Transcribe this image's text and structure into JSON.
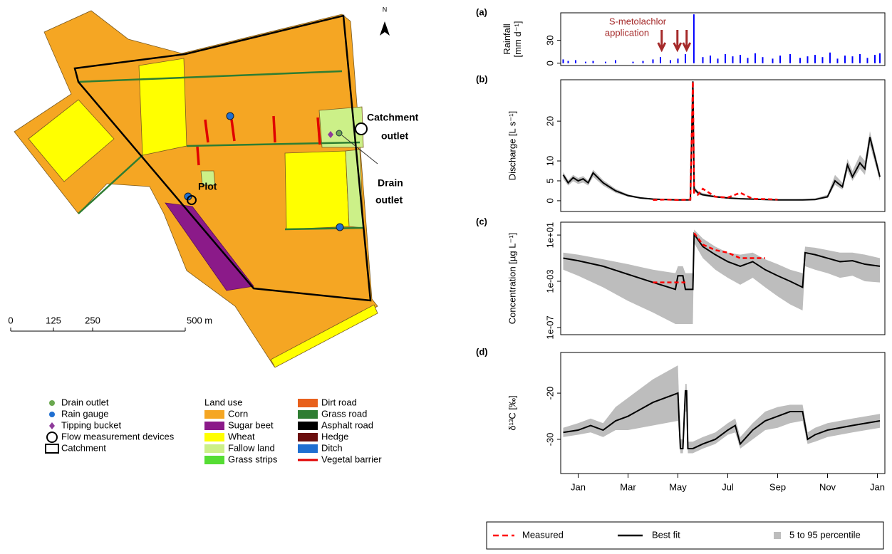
{
  "map": {
    "north": "N",
    "labels": {
      "catchment_outlet": [
        "Catchment",
        "outlet"
      ],
      "drain_outlet": [
        "Drain",
        "outlet"
      ],
      "plot": "Plot"
    },
    "scale": [
      "0",
      "125",
      "250",
      "500 m"
    ],
    "legend": {
      "points": [
        {
          "label": "Drain outlet",
          "color": "#6aa84f",
          "shape": "circle"
        },
        {
          "label": "Rain gauge",
          "color": "#1f6fd1",
          "shape": "circle"
        },
        {
          "label": "Tipping bucket",
          "color": "#8e3a9a",
          "shape": "diamond"
        },
        {
          "label": "Flow measurement devices",
          "color": "#000000",
          "shape": "ring"
        },
        {
          "label": "Catchment",
          "color": "#000000",
          "shape": "box"
        }
      ],
      "land_use_title": "Land use",
      "land_use": [
        {
          "label": "Corn",
          "color": "#f5a623"
        },
        {
          "label": "Sugar beet",
          "color": "#8b1a89"
        },
        {
          "label": "Wheat",
          "color": "#ffff00"
        },
        {
          "label": "Fallow land",
          "color": "#ccf088"
        },
        {
          "label": "Grass strips",
          "color": "#55dd33"
        }
      ],
      "lines": [
        {
          "label": "Dirt road",
          "color": "#e8601c",
          "shape": "box"
        },
        {
          "label": "Grass road",
          "color": "#2e7d32",
          "shape": "box"
        },
        {
          "label": "Asphalt road",
          "color": "#000000",
          "shape": "box"
        },
        {
          "label": "Hedge",
          "color": "#6b0f0f",
          "shape": "box"
        },
        {
          "label": "Ditch",
          "color": "#1f6fd1",
          "shape": "box"
        },
        {
          "label": "Vegetal barrier",
          "color": "#e00000",
          "shape": "line"
        }
      ]
    }
  },
  "chart_data": [
    {
      "type": "bar",
      "panel_label": "(a)",
      "y_label": [
        "Rainfall",
        "[mm d⁻¹]"
      ],
      "color": "#0000ff",
      "xlim": [
        -0.7,
        12.3
      ],
      "ylim": [
        -3,
        66
      ],
      "yticks": [
        0,
        30
      ],
      "x": [
        -0.6,
        -0.4,
        -0.1,
        0.3,
        0.6,
        1.1,
        1.5,
        2.2,
        2.6,
        3.0,
        3.3,
        3.7,
        4.0,
        4.3,
        4.64,
        5.0,
        5.3,
        5.6,
        5.9,
        6.2,
        6.5,
        6.8,
        7.1,
        7.4,
        7.8,
        8.1,
        8.5,
        8.9,
        9.2,
        9.5,
        9.8,
        10.1,
        10.4,
        10.7,
        11.0,
        11.3,
        11.6,
        11.9,
        12.1
      ],
      "values": [
        5,
        3,
        4,
        2,
        3,
        2,
        4,
        2,
        3,
        5,
        8,
        4,
        6,
        12,
        64,
        8,
        10,
        6,
        12,
        9,
        11,
        7,
        13,
        8,
        6,
        10,
        12,
        7,
        9,
        11,
        8,
        14,
        6,
        10,
        9,
        12,
        7,
        11,
        13
      ],
      "annotation": [
        "S-metolachlor",
        "application"
      ],
      "annotation_color": "#a52a2a",
      "annotation_x": [
        3.35,
        3.98,
        4.35
      ]
    },
    {
      "type": "line",
      "panel_label": "(b)",
      "y_label": [
        "Discharge [L s⁻¹]"
      ],
      "xlim": [
        -0.7,
        12.3
      ],
      "ylim": [
        -2.7,
        30.4
      ],
      "yticks": [
        0,
        5,
        10,
        20
      ],
      "x": [
        -0.6,
        -0.4,
        -0.2,
        0,
        0.2,
        0.4,
        0.6,
        1,
        1.5,
        2,
        2.5,
        3,
        3.5,
        4,
        4.5,
        4.6,
        4.65,
        4.8,
        5,
        5.5,
        6,
        6.5,
        7,
        7.5,
        8,
        8.5,
        9,
        9.5,
        10,
        10.3,
        10.6,
        10.8,
        11,
        11.3,
        11.5,
        11.7,
        12.1
      ],
      "fit": [
        6.5,
        4.5,
        5.8,
        5,
        5.5,
        4.5,
        7,
        4.5,
        2.5,
        1.3,
        0.7,
        0.4,
        0.3,
        0.2,
        0.2,
        30,
        3,
        2,
        1.5,
        1,
        0.7,
        0.5,
        0.4,
        0.3,
        0.2,
        0.2,
        0.2,
        0.3,
        1,
        5,
        3.5,
        9,
        6,
        9.5,
        8,
        16,
        6
      ],
      "lower": [
        5.5,
        3.8,
        4.9,
        4.2,
        4.6,
        3.8,
        6,
        3.8,
        2,
        1,
        0.5,
        0.3,
        0.2,
        0.1,
        0.1,
        28,
        2.4,
        1.6,
        1.2,
        0.8,
        0.5,
        0.4,
        0.3,
        0.2,
        0.1,
        0.1,
        0.1,
        0.2,
        0.7,
        4,
        2.8,
        7.5,
        5,
        8,
        6.5,
        14,
        5
      ],
      "upper": [
        7.2,
        5.2,
        6.5,
        5.7,
        6.2,
        5.1,
        7.8,
        5.2,
        3,
        1.6,
        0.9,
        0.6,
        0.4,
        0.3,
        0.3,
        31,
        3.6,
        2.5,
        1.9,
        1.3,
        0.9,
        0.7,
        0.5,
        0.4,
        0.3,
        0.3,
        0.4,
        0.6,
        1.5,
        6.5,
        4.5,
        10.5,
        7.5,
        11.5,
        10,
        17.5,
        7
      ],
      "measured": [
        null,
        null,
        null,
        null,
        null,
        null,
        null,
        null,
        null,
        null,
        null,
        0.2,
        0.3,
        0.2,
        0.3,
        30,
        2,
        1.5,
        3,
        1,
        0.8,
        2,
        0.5,
        0.4,
        0.3,
        null,
        null,
        null,
        null,
        null,
        null,
        null,
        null,
        null,
        null,
        null,
        null
      ]
    },
    {
      "type": "line",
      "panel_label": "(c)",
      "y_label": [
        "Concentration [µg L⁻¹]"
      ],
      "log": true,
      "xlim": [
        -0.7,
        12.3
      ],
      "ylim": [
        2.4e-08,
        130
      ],
      "yticks": [
        {
          "value": 1e-07,
          "label": "1e-07"
        },
        {
          "value": 0.001,
          "label": "1e-03"
        },
        {
          "value": 10,
          "label": "1e+01"
        }
      ],
      "x": [
        -0.6,
        0,
        1,
        2,
        3,
        3.9,
        4.0,
        4.2,
        4.3,
        4.35,
        4.6,
        4.65,
        5,
        5.5,
        6,
        6.5,
        7,
        7.5,
        8,
        8.5,
        9,
        9.1,
        9.5,
        10,
        10.5,
        11,
        11.5,
        12.1
      ],
      "fit": [
        0.1,
        0.06,
        0.02,
        0.004,
        0.0008,
        0.0002,
        0.003,
        0.003,
        0.0002,
        0.0002,
        0.0002,
        12,
        1,
        0.2,
        0.05,
        0.02,
        0.05,
        0.01,
        0.003,
        0.001,
        0.0003,
        0.3,
        0.2,
        0.1,
        0.05,
        0.06,
        0.03,
        0.02
      ],
      "lower": [
        0.01,
        0.003,
        0.0003,
        2e-05,
        2e-06,
        2e-07,
        2e-07,
        2e-07,
        2e-07,
        2e-07,
        2e-07,
        2,
        0.1,
        0.01,
        0.002,
        0.0005,
        0.002,
        0.0003,
        5e-05,
        1e-05,
        3e-06,
        0.02,
        0.01,
        0.005,
        0.002,
        0.003,
        0.001,
        0.0008
      ],
      "upper": [
        0.3,
        0.2,
        0.08,
        0.03,
        0.01,
        0.005,
        0.02,
        0.02,
        0.005,
        0.005,
        0.005,
        30,
        5,
        1,
        0.3,
        0.2,
        0.3,
        0.08,
        0.03,
        0.01,
        0.005,
        1,
        0.8,
        0.5,
        0.3,
        0.3,
        0.2,
        0.1
      ],
      "measured": [
        null,
        null,
        null,
        null,
        0.0008,
        0.0008,
        0.0008,
        0.0008,
        0.0008,
        null,
        null,
        15,
        1.5,
        0.5,
        0.3,
        0.1,
        0.1,
        0.1,
        null,
        null,
        null,
        null,
        null,
        null,
        null,
        null,
        null,
        null
      ]
    },
    {
      "type": "line",
      "panel_label": "(d)",
      "y_label": [
        "δ¹³C [‰]"
      ],
      "xlim": [
        -0.7,
        12.3
      ],
      "ylim": [
        -37.4,
        -11.2
      ],
      "yticks": [
        -30,
        -20
      ],
      "xticks": [
        {
          "value": 0,
          "label": "Jan"
        },
        {
          "value": 2,
          "label": "Mar"
        },
        {
          "value": 4,
          "label": "May"
        },
        {
          "value": 6,
          "label": "Jul"
        },
        {
          "value": 8,
          "label": "Sep"
        },
        {
          "value": 10,
          "label": "Nov"
        },
        {
          "value": 12,
          "label": "Jan"
        }
      ],
      "x": [
        -0.6,
        0,
        0.5,
        1,
        1.5,
        2,
        3,
        4,
        4.1,
        4.2,
        4.3,
        4.35,
        4.4,
        4.5,
        4.6,
        5,
        5.5,
        6,
        6.3,
        6.5,
        7,
        7.5,
        8,
        8.5,
        9,
        9.2,
        9.5,
        10,
        11,
        12.1
      ],
      "fit": [
        -28.5,
        -28,
        -27,
        -28,
        -26,
        -25,
        -22,
        -20,
        -32,
        -32,
        -19.5,
        -19.5,
        -32,
        -32,
        -32,
        -31,
        -30,
        -28,
        -27,
        -31,
        -28,
        -26,
        -25,
        -24,
        -24,
        -30,
        -29,
        -28,
        -27,
        -26
      ],
      "lower": [
        -29.5,
        -29,
        -28.5,
        -29.5,
        -28,
        -28,
        -27,
        -26,
        -33,
        -33,
        -24,
        -24,
        -33,
        -33,
        -33,
        -32,
        -31,
        -29,
        -28.5,
        -32,
        -30,
        -28,
        -27.5,
        -26.5,
        -26,
        -31,
        -30.5,
        -29.5,
        -28.5,
        -27.5
      ],
      "upper": [
        -27.5,
        -26.5,
        -25.5,
        -26.5,
        -23,
        -21,
        -17,
        -14,
        -30,
        -30,
        -18,
        -18,
        -30.5,
        -30.5,
        -30.5,
        -29.5,
        -28.5,
        -26.5,
        -25.5,
        -29.5,
        -26.5,
        -24,
        -23,
        -22.5,
        -22.5,
        -28.5,
        -27.5,
        -26.5,
        -25.5,
        -24.5
      ],
      "measured": [
        null,
        null,
        null,
        null,
        null,
        null,
        null,
        null,
        null,
        null,
        null,
        null,
        null,
        -32,
        null,
        null,
        -30.5,
        null,
        -29.5,
        null,
        null,
        null,
        null,
        null,
        null,
        null,
        null,
        null,
        null,
        null
      ]
    }
  ],
  "legend": {
    "measured": {
      "name": "Measured",
      "color": "#ff0000"
    },
    "fit": {
      "name": "Best fit",
      "color": "#000000"
    },
    "band": {
      "name": "5 to 95 percentile",
      "color": "#bdbdbd"
    }
  }
}
